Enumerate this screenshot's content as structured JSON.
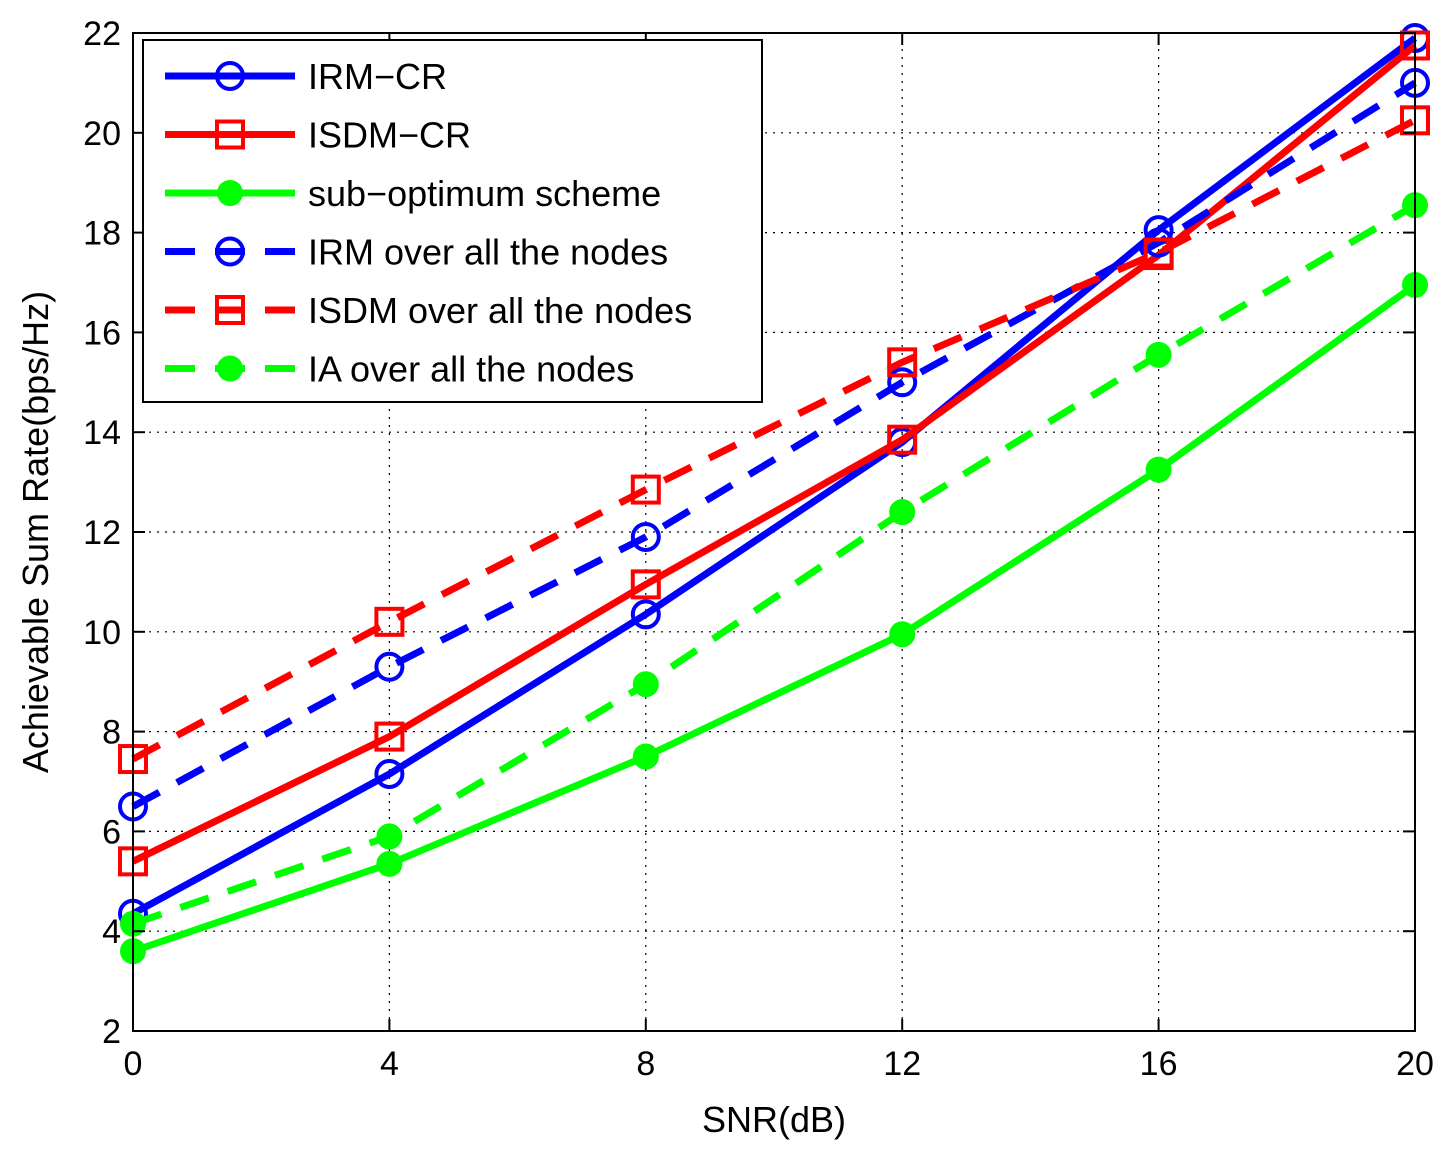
{
  "chart_data": {
    "type": "line",
    "title": "",
    "xlabel": "SNR(dB)",
    "ylabel": "Achievable Sum Rate(bps/Hz)",
    "xlim": [
      0,
      20
    ],
    "ylim": [
      2,
      22
    ],
    "xticks": [
      0,
      4,
      8,
      12,
      16,
      20
    ],
    "yticks": [
      2,
      4,
      6,
      8,
      10,
      12,
      14,
      16,
      18,
      20,
      22
    ],
    "grid": true,
    "legend_position": "top-left",
    "x": [
      0,
      4,
      8,
      12,
      16,
      20
    ],
    "series": [
      {
        "name": "IRM−CR",
        "color": "#0000ff",
        "dash": "solid",
        "marker": "open-circle",
        "values": [
          4.35,
          7.15,
          10.35,
          13.8,
          18.05,
          21.9
        ]
      },
      {
        "name": "ISDM−CR",
        "color": "#ff0000",
        "dash": "solid",
        "marker": "open-square",
        "values": [
          5.4,
          7.9,
          10.95,
          13.85,
          17.55,
          21.75
        ]
      },
      {
        "name": "sub−optimum scheme",
        "color": "#00ff00",
        "dash": "solid",
        "marker": "filled-circle",
        "values": [
          3.6,
          5.35,
          7.5,
          9.95,
          13.25,
          16.95
        ]
      },
      {
        "name": "IRM over all the nodes",
        "color": "#0000ff",
        "dash": "dashed",
        "marker": "open-circle",
        "values": [
          6.5,
          9.3,
          11.9,
          15.0,
          17.8,
          21.0
        ]
      },
      {
        "name": "ISDM over all the nodes",
        "color": "#ff0000",
        "dash": "dashed",
        "marker": "open-square",
        "values": [
          7.45,
          10.2,
          12.85,
          15.4,
          17.6,
          20.25
        ]
      },
      {
        "name": "IA over all the nodes",
        "color": "#00ff00",
        "dash": "dashed",
        "marker": "filled-circle",
        "values": [
          4.15,
          5.9,
          8.95,
          12.4,
          15.55,
          18.55
        ]
      }
    ]
  }
}
